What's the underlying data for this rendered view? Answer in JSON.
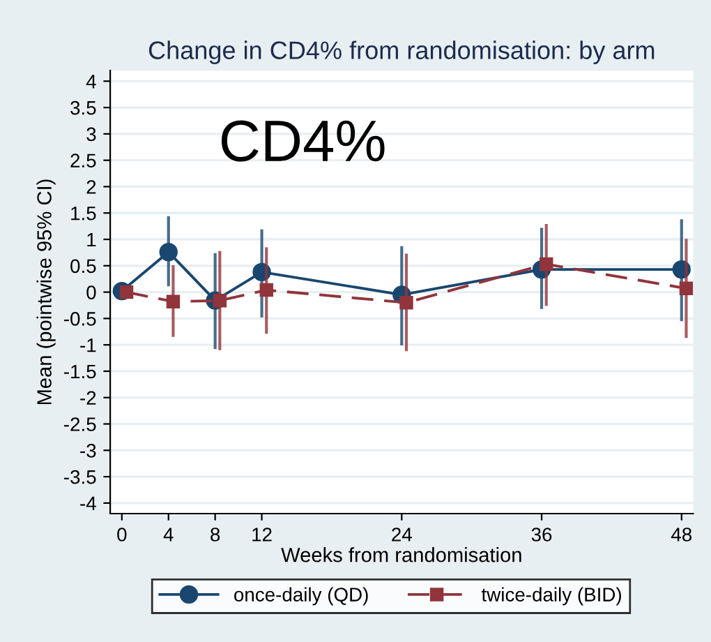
{
  "chart_data": {
    "type": "line",
    "title": "Change in CD4% from randomisation: by arm",
    "xlabel": "Weeks from randomisation",
    "ylabel": "Mean (pointwise 95% CI)",
    "x": [
      0,
      4,
      8,
      12,
      24,
      36,
      48
    ],
    "series": [
      {
        "name": "once-daily (QD)",
        "color": "#1a476f",
        "marker": "circle",
        "line_style": "solid",
        "values": [
          0.02,
          0.76,
          -0.16,
          0.38,
          -0.05,
          0.43,
          0.43
        ],
        "errors": [
          null,
          [
            0.11,
            1.44
          ],
          [
            -1.08,
            0.74
          ],
          [
            -0.48,
            1.19
          ],
          [
            -1.01,
            0.87
          ],
          [
            -0.32,
            1.22
          ],
          [
            -0.55,
            1.38
          ]
        ]
      },
      {
        "name": "twice-daily (BID)",
        "x": [
          0.4,
          4.4,
          8.4,
          12.4,
          24.4,
          36.4,
          48.4
        ],
        "color": "#90353b",
        "marker": "square",
        "line_style": "dashed",
        "values": [
          0,
          -0.18,
          -0.16,
          0.04,
          -0.2,
          0.53,
          0.07
        ],
        "errors": [
          null,
          [
            -0.85,
            0.51
          ],
          [
            -1.1,
            0.78
          ],
          [
            -0.79,
            0.85
          ],
          [
            -1.12,
            0.73
          ],
          [
            -0.26,
            1.29
          ],
          [
            -0.87,
            1.01
          ]
        ]
      }
    ],
    "xlim": [
      -1,
      49
    ],
    "xticks": [
      0,
      4,
      8,
      12,
      24,
      36,
      48
    ],
    "ylim": [
      -4.2,
      4.2
    ],
    "yticks": [
      -4,
      -3.5,
      -3,
      -2.5,
      -2,
      -1.5,
      -1,
      -0.5,
      0,
      0.5,
      1,
      1.5,
      2,
      2.5,
      3,
      3.5,
      4
    ],
    "grid": "y",
    "legend": "bottom",
    "annotations": [
      "CD4%"
    ]
  }
}
